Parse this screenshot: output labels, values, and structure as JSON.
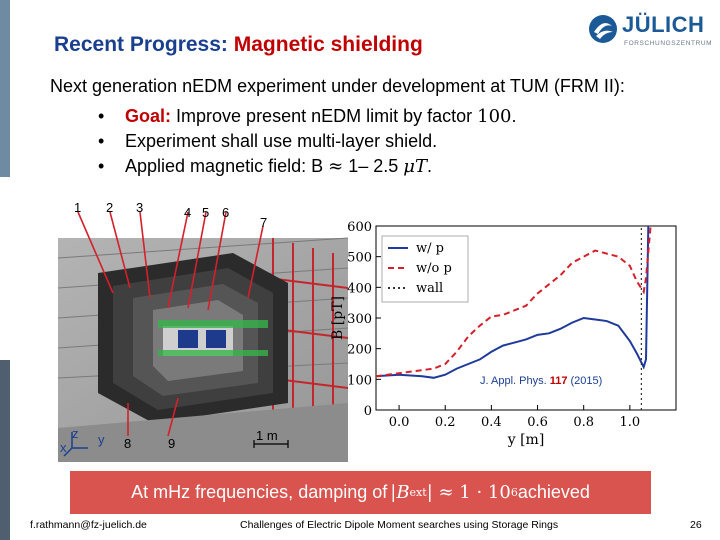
{
  "title": {
    "part1": "Recent Progress:",
    "part2": "Magnetic shielding"
  },
  "logo": {
    "name": "JÜLICH",
    "subtitle": "FORSCHUNGSZENTRUM"
  },
  "lead": "Next generation nEDM experiment under development at TUM (FRM II):",
  "bullets": [
    {
      "label": "Goal:",
      "pre": "Improve present nEDM limit by factor ",
      "value": "100",
      "post": "."
    },
    {
      "text": "Experiment shall use multi-layer shield."
    },
    {
      "pre": "Applied magnetic field: B ",
      "approx": "≈",
      "range": " 1– 2.5 ",
      "unit": "μT",
      "post": "."
    }
  ],
  "photo": {
    "numbers": [
      "1",
      "2",
      "3",
      "4",
      "5",
      "6",
      "7",
      "8",
      "9"
    ],
    "scale": "1 m",
    "axes": {
      "z": "z",
      "y": "y",
      "x": "x"
    }
  },
  "citation": {
    "pre": "J. Appl. Phys. ",
    "volume": "117",
    "post": " (2015)"
  },
  "chart_data": {
    "type": "line",
    "xlabel": "y [m]",
    "ylabel": "B [pT]",
    "xlim": [
      -0.1,
      1.2
    ],
    "ylim": [
      0,
      600
    ],
    "xticks": [
      "0.0",
      "0.2",
      "0.4",
      "0.6",
      "0.8",
      "1.0"
    ],
    "yticks": [
      "0",
      "100",
      "200",
      "300",
      "400",
      "500",
      "600"
    ],
    "legend_position": "top-left",
    "legend": [
      "w/ p",
      "w/o p",
      "wall"
    ],
    "series": [
      {
        "name": "w/ p",
        "color": "#1f3a9c",
        "style": "solid",
        "x": [
          -0.1,
          0.0,
          0.1,
          0.15,
          0.2,
          0.25,
          0.3,
          0.35,
          0.4,
          0.45,
          0.5,
          0.55,
          0.6,
          0.65,
          0.7,
          0.75,
          0.8,
          0.85,
          0.9,
          0.95,
          1.0,
          1.03,
          1.06,
          1.07,
          1.08
        ],
        "y": [
          110,
          115,
          110,
          105,
          115,
          135,
          150,
          165,
          190,
          210,
          220,
          230,
          245,
          250,
          265,
          285,
          300,
          295,
          290,
          275,
          225,
          185,
          140,
          165,
          600
        ]
      },
      {
        "name": "w/o p",
        "color": "#d4202a",
        "style": "dashed",
        "x": [
          -0.1,
          0.0,
          0.1,
          0.15,
          0.2,
          0.25,
          0.3,
          0.35,
          0.4,
          0.45,
          0.5,
          0.55,
          0.6,
          0.65,
          0.7,
          0.75,
          0.8,
          0.85,
          0.9,
          0.95,
          1.0,
          1.03,
          1.06,
          1.07,
          1.09
        ],
        "y": [
          110,
          120,
          130,
          135,
          150,
          190,
          240,
          275,
          305,
          310,
          325,
          340,
          380,
          410,
          440,
          480,
          500,
          520,
          510,
          500,
          470,
          420,
          385,
          430,
          600
        ]
      },
      {
        "name": "wall",
        "color": "#333333",
        "style": "dotted",
        "x": [
          1.05,
          1.05
        ],
        "y": [
          0,
          600
        ]
      }
    ]
  },
  "banner": {
    "pre": "At mHz frequencies, damping of ",
    "expr": "|B",
    "sub": "ext",
    "expr2": "| ≈ 1 · 10",
    "exp": "6",
    "post": " achieved"
  },
  "footer": {
    "left": "f.rathmann@fz-juelich.de",
    "center": "Challenges of Electric Dipole Moment searches using Storage Rings",
    "page": "26"
  }
}
